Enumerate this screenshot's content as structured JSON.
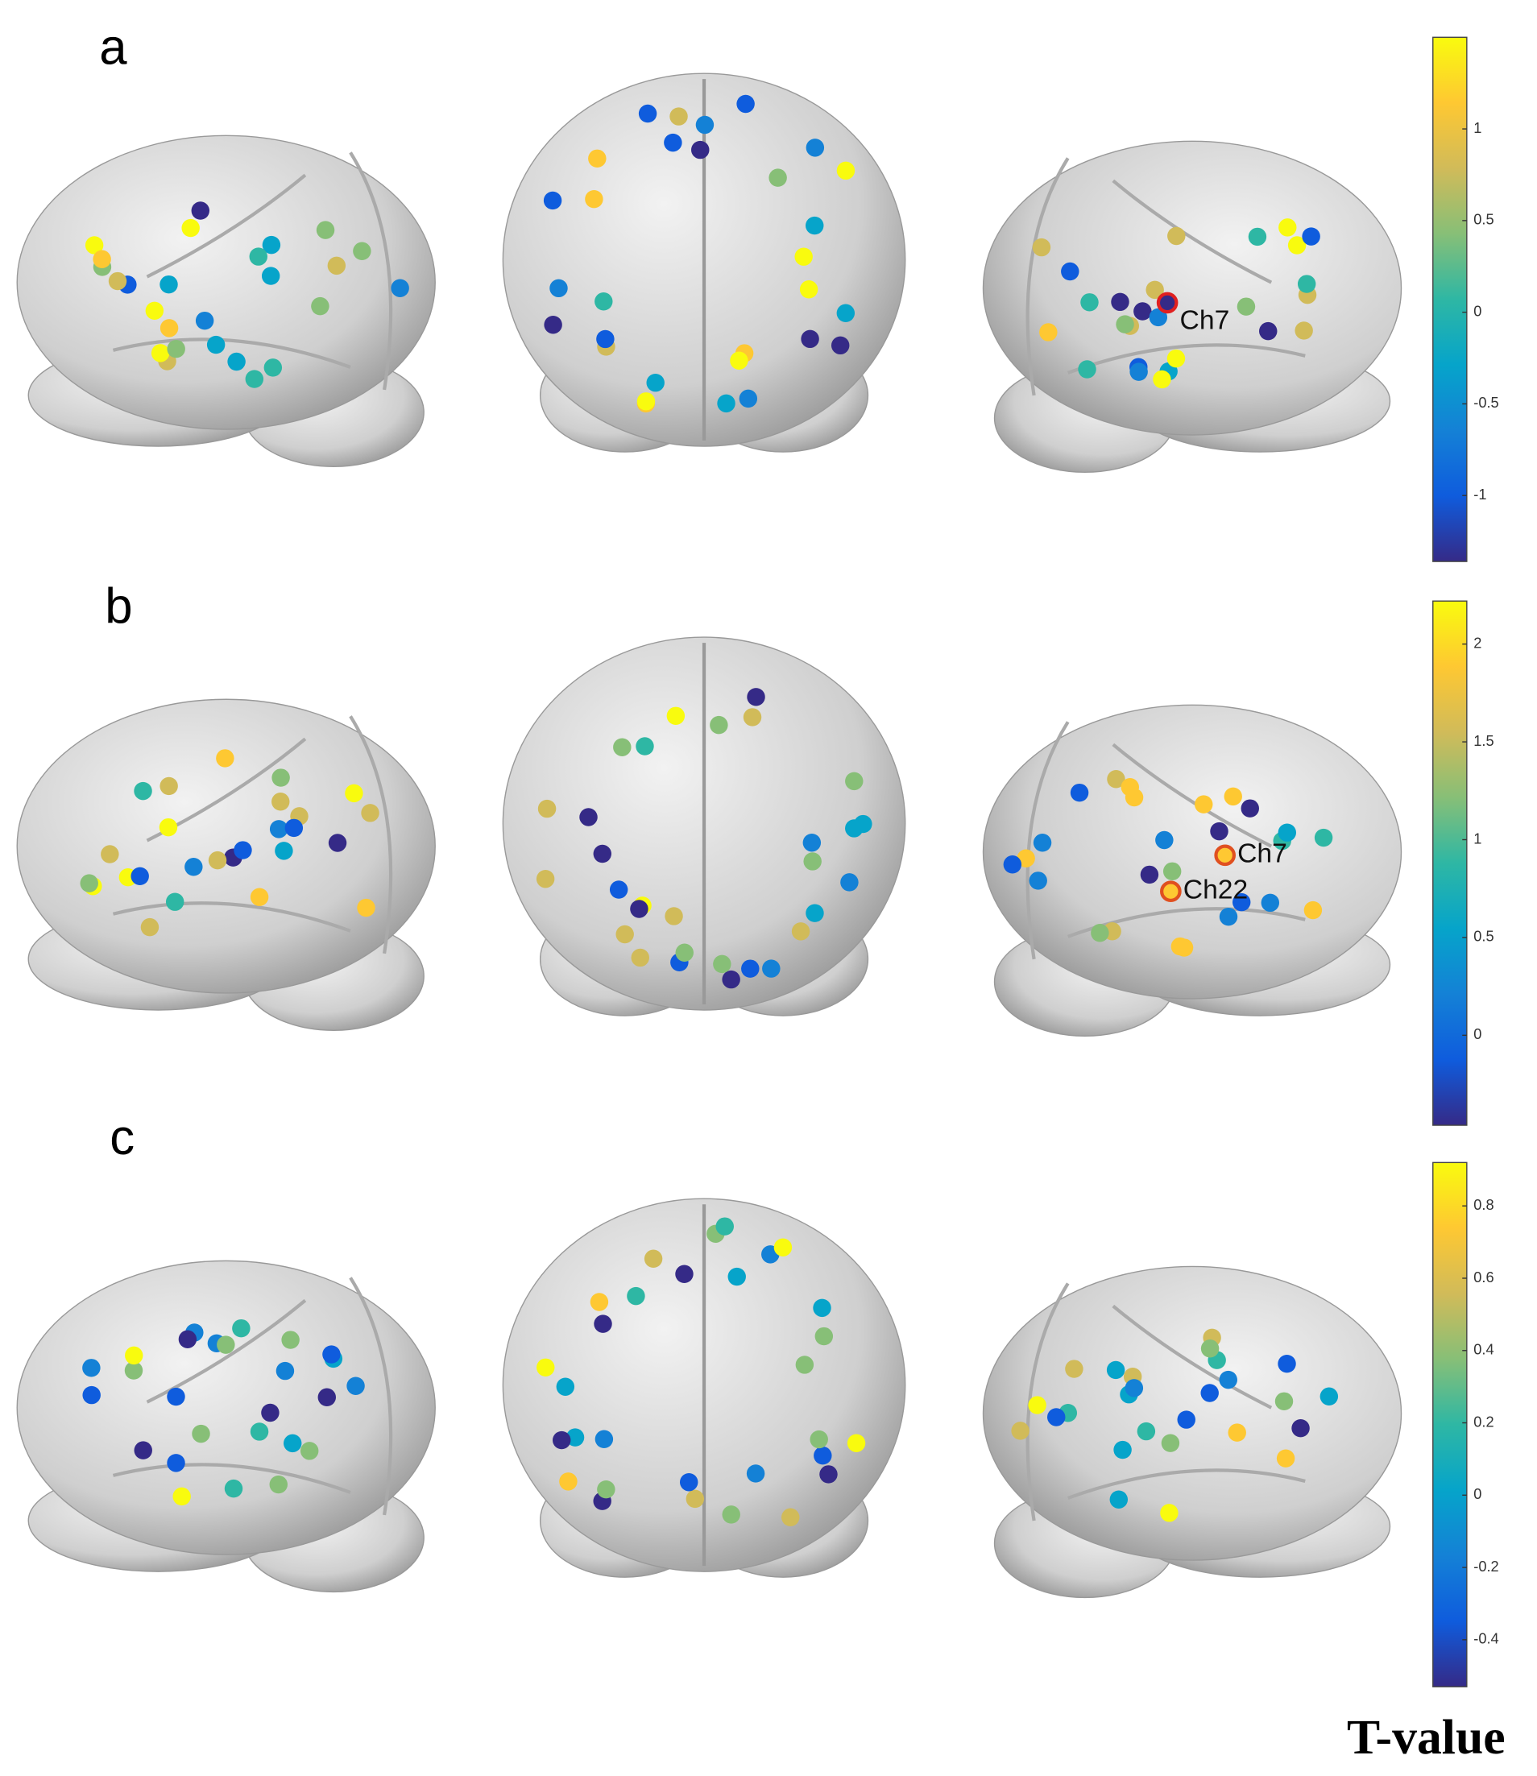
{
  "panels": [
    {
      "label": "a",
      "colorbar": {
        "ylim": [
          -1.36,
          1.5
        ],
        "yticks": [
          -1,
          -0.5,
          0,
          0.5,
          1
        ]
      },
      "annotations": [
        "Ch7"
      ]
    },
    {
      "label": "b",
      "colorbar": {
        "ylim": [
          -0.46,
          2.22
        ],
        "yticks": [
          0,
          0.5,
          1,
          1.5,
          2
        ]
      },
      "annotations": [
        "Ch7",
        "Ch22"
      ]
    },
    {
      "label": "c",
      "colorbar": {
        "ylim": [
          -0.53,
          0.92
        ],
        "yticks": [
          -0.4,
          -0.2,
          0,
          0.2,
          0.4,
          0.6,
          0.8
        ]
      },
      "annotations": []
    }
  ],
  "colorbar_title": "T-value",
  "colormap": [
    "#352a87",
    "#0f5cdd",
    "#1481d6",
    "#06a4ca",
    "#2eb7a4",
    "#87bf77",
    "#d1bb59",
    "#fec832",
    "#f9fb0e"
  ]
}
